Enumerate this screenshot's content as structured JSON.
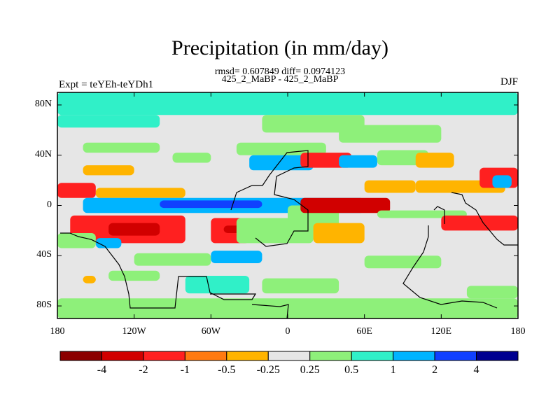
{
  "title": "Precipitation (in mm/day)",
  "stats": "rmsd= 0.607849 diff= 0.0974123",
  "subtitle": "425_2_MaBP - 425_2_MaBP",
  "left_label": "Expt = teYEh-teYDh1",
  "right_label": "DJF",
  "chart_data": {
    "type": "heatmap",
    "title": "Precipitation (in mm/day)",
    "x_ticks": [
      "180",
      "120W",
      "60W",
      "0",
      "60E",
      "120E",
      "180"
    ],
    "x_tick_values": [
      -180,
      -120,
      -60,
      0,
      60,
      120,
      180
    ],
    "xlim": [
      -180,
      180
    ],
    "y_ticks": [
      "80N",
      "40N",
      "0",
      "40S",
      "80S"
    ],
    "y_tick_values": [
      80,
      40,
      0,
      -40,
      -80
    ],
    "ylim": [
      -90,
      90
    ],
    "colorbar": {
      "levels": [
        -4,
        -2,
        -1,
        -0.5,
        -0.25,
        0.25,
        0.5,
        1,
        2,
        4
      ],
      "labels": [
        "-4",
        "-2",
        "-1",
        "-0.5",
        "-0.25",
        "0.25",
        "0.5",
        "1",
        "2",
        "4"
      ],
      "colors": [
        "#8b0000",
        "#d10000",
        "#ff2020",
        "#ff7a10",
        "#ffb400",
        "#e6e6e6",
        "#8ef07a",
        "#30f0c8",
        "#00b4ff",
        "#1040ff",
        "#000090"
      ]
    },
    "regions": [
      {
        "lon": [
          -180,
          180
        ],
        "lat": [
          72,
          90
        ],
        "value": 0.7
      },
      {
        "lon": [
          -180,
          -100
        ],
        "lat": [
          62,
          72
        ],
        "value": 0.7
      },
      {
        "lon": [
          -20,
          60
        ],
        "lat": [
          58,
          72
        ],
        "value": 0.35
      },
      {
        "lon": [
          40,
          120
        ],
        "lat": [
          50,
          64
        ],
        "value": 0.35
      },
      {
        "lon": [
          -160,
          -100
        ],
        "lat": [
          42,
          50
        ],
        "value": 0.3
      },
      {
        "lon": [
          -160,
          -120
        ],
        "lat": [
          24,
          32
        ],
        "value": -0.3
      },
      {
        "lon": [
          -90,
          -60
        ],
        "lat": [
          34,
          42
        ],
        "value": 0.35
      },
      {
        "lon": [
          -40,
          30
        ],
        "lat": [
          40,
          50
        ],
        "value": 0.35
      },
      {
        "lon": [
          -30,
          20
        ],
        "lat": [
          28,
          40
        ],
        "value": 1.5
      },
      {
        "lon": [
          10,
          50
        ],
        "lat": [
          30,
          42
        ],
        "value": -1.5
      },
      {
        "lon": [
          40,
          70
        ],
        "lat": [
          30,
          40
        ],
        "value": 1.5
      },
      {
        "lon": [
          70,
          110
        ],
        "lat": [
          32,
          44
        ],
        "value": 0.35
      },
      {
        "lon": [
          100,
          130
        ],
        "lat": [
          30,
          42
        ],
        "value": -0.3
      },
      {
        "lon": [
          -180,
          -150
        ],
        "lat": [
          6,
          18
        ],
        "value": -1.2
      },
      {
        "lon": [
          -150,
          -80
        ],
        "lat": [
          6,
          14
        ],
        "value": -0.3
      },
      {
        "lon": [
          -160,
          60
        ],
        "lat": [
          -6,
          6
        ],
        "value": 1.5
      },
      {
        "lon": [
          -100,
          -20
        ],
        "lat": [
          -2,
          4
        ],
        "value": 3
      },
      {
        "lon": [
          0,
          40
        ],
        "lat": [
          -20,
          0
        ],
        "value": 0.35
      },
      {
        "lon": [
          10,
          80
        ],
        "lat": [
          -6,
          6
        ],
        "value": -3
      },
      {
        "lon": [
          60,
          100
        ],
        "lat": [
          10,
          20
        ],
        "value": -0.3
      },
      {
        "lon": [
          70,
          140
        ],
        "lat": [
          -10,
          -4
        ],
        "value": 0.35
      },
      {
        "lon": [
          -170,
          -80
        ],
        "lat": [
          -30,
          -8
        ],
        "value": -1.2
      },
      {
        "lon": [
          -140,
          -100
        ],
        "lat": [
          -24,
          -14
        ],
        "value": -2.2
      },
      {
        "lon": [
          -60,
          -30
        ],
        "lat": [
          -30,
          -10
        ],
        "value": -1.5
      },
      {
        "lon": [
          -50,
          -30
        ],
        "lat": [
          -22,
          -16
        ],
        "value": -3
      },
      {
        "lon": [
          -180,
          -150
        ],
        "lat": [
          -34,
          -22
        ],
        "value": 0.35
      },
      {
        "lon": [
          -150,
          -130
        ],
        "lat": [
          -34,
          -26
        ],
        "value": 1.5
      },
      {
        "lon": [
          -40,
          20
        ],
        "lat": [
          -30,
          -10
        ],
        "value": 0.35
      },
      {
        "lon": [
          20,
          60
        ],
        "lat": [
          -30,
          -14
        ],
        "value": -0.3
      },
      {
        "lon": [
          100,
          170
        ],
        "lat": [
          10,
          20
        ],
        "value": -0.3
      },
      {
        "lon": [
          120,
          180
        ],
        "lat": [
          -20,
          -8
        ],
        "value": -1.2
      },
      {
        "lon": [
          150,
          180
        ],
        "lat": [
          14,
          30
        ],
        "value": -1.5
      },
      {
        "lon": [
          160,
          175
        ],
        "lat": [
          14,
          24
        ],
        "value": 1.5
      },
      {
        "lon": [
          -120,
          -60
        ],
        "lat": [
          -48,
          -38
        ],
        "value": 0.35
      },
      {
        "lon": [
          -60,
          -20
        ],
        "lat": [
          -46,
          -36
        ],
        "value": 1.5
      },
      {
        "lon": [
          60,
          120
        ],
        "lat": [
          -50,
          -40
        ],
        "value": 0.35
      },
      {
        "lon": [
          -140,
          -100
        ],
        "lat": [
          -60,
          -52
        ],
        "value": 0.35
      },
      {
        "lon": [
          -160,
          -150
        ],
        "lat": [
          -62,
          -56
        ],
        "value": -0.3
      },
      {
        "lon": [
          -80,
          -30
        ],
        "lat": [
          -70,
          -56
        ],
        "value": 0.7
      },
      {
        "lon": [
          -20,
          40
        ],
        "lat": [
          -70,
          -58
        ],
        "value": 0.35
      },
      {
        "lon": [
          140,
          180
        ],
        "lat": [
          -74,
          -64
        ],
        "value": 0.35
      },
      {
        "lon": [
          -180,
          180
        ],
        "lat": [
          -90,
          -74
        ],
        "value": 0.35
      }
    ]
  }
}
